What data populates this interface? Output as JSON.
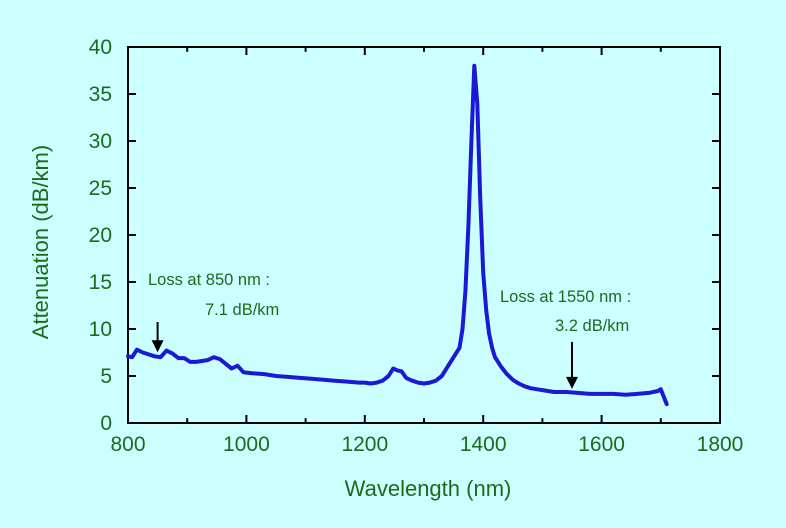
{
  "chart_data": {
    "type": "line",
    "xlabel": "Wavelength (nm)",
    "ylabel": "Attenuation (dB/km)",
    "xlim": [
      800,
      1800
    ],
    "ylim": [
      0,
      40
    ],
    "x_ticks": [
      800,
      1000,
      1200,
      1400,
      1600,
      1800
    ],
    "x_tick_labels": [
      "800",
      "1000",
      "1200",
      "1400",
      "1600",
      "1800"
    ],
    "y_ticks": [
      0,
      5,
      10,
      15,
      20,
      25,
      30,
      35,
      40
    ],
    "y_tick_labels": [
      "0",
      "5",
      "10",
      "15",
      "20",
      "25",
      "30",
      "35",
      "40"
    ],
    "grid": false,
    "colors": {
      "background": "#CCFFFF",
      "line": "#1A1AD6",
      "text": "#1B6B1B",
      "frame": "#000000"
    },
    "series": [
      {
        "x": [
          800,
          807,
          815,
          825,
          835,
          845,
          855,
          865,
          875,
          885,
          895,
          905,
          915,
          925,
          935,
          945,
          955,
          965,
          975,
          985,
          995,
          1010,
          1030,
          1050,
          1070,
          1090,
          1110,
          1130,
          1150,
          1170,
          1190,
          1200,
          1210,
          1220,
          1230,
          1240,
          1248,
          1255,
          1262,
          1270,
          1280,
          1290,
          1300,
          1310,
          1320,
          1330,
          1340,
          1350,
          1360,
          1365,
          1370,
          1375,
          1380,
          1385,
          1390,
          1395,
          1400,
          1405,
          1410,
          1415,
          1420,
          1430,
          1440,
          1450,
          1460,
          1470,
          1480,
          1490,
          1500,
          1520,
          1540,
          1560,
          1580,
          1600,
          1620,
          1640,
          1660,
          1680,
          1695,
          1700,
          1710
        ],
        "y": [
          7.1,
          7.0,
          7.8,
          7.5,
          7.3,
          7.1,
          7.0,
          7.7,
          7.4,
          6.9,
          6.9,
          6.5,
          6.5,
          6.6,
          6.7,
          7.0,
          6.8,
          6.3,
          5.8,
          6.1,
          5.4,
          5.3,
          5.2,
          5.0,
          4.9,
          4.8,
          4.7,
          4.6,
          4.5,
          4.4,
          4.3,
          4.3,
          4.2,
          4.3,
          4.5,
          5.0,
          5.8,
          5.6,
          5.5,
          4.8,
          4.5,
          4.3,
          4.2,
          4.3,
          4.5,
          5.0,
          6.0,
          7.0,
          8.0,
          10.0,
          14.0,
          21.0,
          30.0,
          38.0,
          34.0,
          24.0,
          16.0,
          12.0,
          9.5,
          8.0,
          7.0,
          6.0,
          5.2,
          4.6,
          4.2,
          3.9,
          3.7,
          3.6,
          3.5,
          3.3,
          3.3,
          3.2,
          3.1,
          3.1,
          3.1,
          3.0,
          3.1,
          3.2,
          3.4,
          3.6,
          2.0
        ]
      }
    ],
    "annotations": [
      {
        "line1": "Loss at 850 nm :",
        "line2": "7.1 dB/km",
        "x": 850,
        "y": 7.1
      },
      {
        "line1": "Loss at 1550 nm :",
        "line2": "3.2 dB/km",
        "x": 1550,
        "y": 3.2
      }
    ]
  }
}
